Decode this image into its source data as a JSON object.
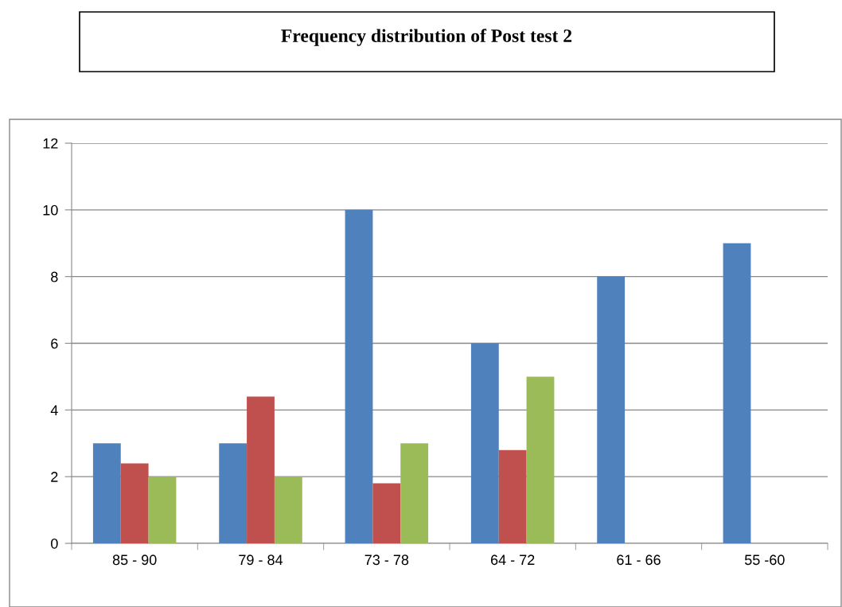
{
  "chart_data": {
    "type": "bar",
    "title": "Frequency distribution of Post test 2",
    "categories": [
      "85 - 90",
      "79 - 84",
      "73 - 78",
      "64 - 72",
      "61 - 66",
      "55 -60"
    ],
    "series": [
      {
        "color": "#4f81bd",
        "values": [
          3,
          3,
          10,
          6,
          8,
          9
        ]
      },
      {
        "color": "#c0504d",
        "values": [
          2.4,
          4.4,
          1.8,
          2.8,
          null,
          null
        ]
      },
      {
        "color": "#9bbb59",
        "values": [
          2,
          2,
          3,
          5,
          null,
          null
        ]
      }
    ],
    "ylim": [
      0,
      12
    ],
    "yticks": [
      0,
      2,
      4,
      6,
      8,
      10,
      12
    ],
    "grid": "y",
    "legend": false
  }
}
